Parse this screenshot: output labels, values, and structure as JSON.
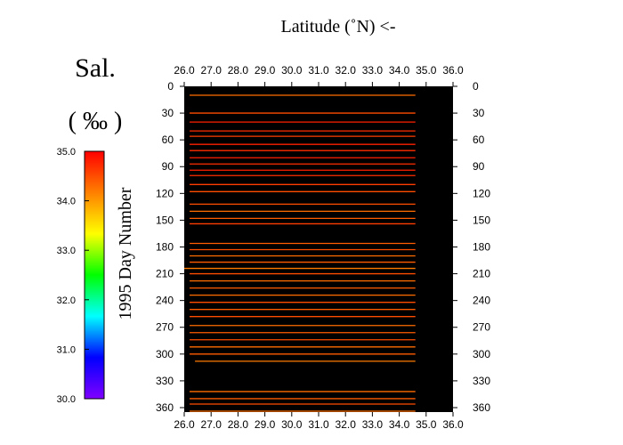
{
  "chart_data": {
    "type": "heatmap",
    "title": "Latitude (˚N) <-",
    "xlabel": "Latitude (˚N) <-",
    "ylabel": "1995  Day Number",
    "x_ticks": [
      "26.0",
      "27.0",
      "28.0",
      "29.0",
      "30.0",
      "31.0",
      "32.0",
      "33.0",
      "34.0",
      "35.0",
      "36.0"
    ],
    "xlim": [
      26.0,
      36.0
    ],
    "y_ticks": [
      "0",
      "30",
      "60",
      "90",
      "120",
      "150",
      "180",
      "210",
      "240",
      "270",
      "300",
      "330",
      "360"
    ],
    "ylim": [
      0,
      365
    ],
    "y_inverted": true,
    "colorbar": {
      "label_line1": "Sal.",
      "label_line2": "( ‰ )",
      "ticks": [
        "35.0",
        "34.0",
        "33.0",
        "32.0",
        "31.0",
        "30.0"
      ],
      "range": [
        30.0,
        35.0
      ],
      "colormap": [
        "#ff0000",
        "#ff8000",
        "#ffff00",
        "#00ff00",
        "#00ffff",
        "#0000ff",
        "#8000ff"
      ]
    },
    "background_color": "#000000",
    "tracks": [
      {
        "day": 10,
        "start": 26.2,
        "end": 34.6,
        "value": 34.3
      },
      {
        "day": 30,
        "start": 26.2,
        "end": 34.6,
        "value": 34.5
      },
      {
        "day": 40,
        "start": 26.2,
        "end": 34.6,
        "value": 34.8
      },
      {
        "day": 50,
        "start": 26.2,
        "end": 34.6,
        "value": 34.7
      },
      {
        "day": 56,
        "start": 26.2,
        "end": 34.6,
        "value": 34.6
      },
      {
        "day": 65,
        "start": 26.2,
        "end": 34.6,
        "value": 34.8
      },
      {
        "day": 72,
        "start": 26.2,
        "end": 34.6,
        "value": 34.7
      },
      {
        "day": 80,
        "start": 26.2,
        "end": 34.6,
        "value": 34.8
      },
      {
        "day": 87,
        "start": 26.2,
        "end": 34.6,
        "value": 34.7
      },
      {
        "day": 94,
        "start": 26.2,
        "end": 34.6,
        "value": 34.8
      },
      {
        "day": 100,
        "start": 26.2,
        "end": 34.6,
        "value": 34.7
      },
      {
        "day": 110,
        "start": 26.2,
        "end": 34.6,
        "value": 34.6
      },
      {
        "day": 118,
        "start": 26.2,
        "end": 34.6,
        "value": 34.5
      },
      {
        "day": 132,
        "start": 26.2,
        "end": 34.6,
        "value": 34.5
      },
      {
        "day": 140,
        "start": 26.2,
        "end": 34.6,
        "value": 34.3
      },
      {
        "day": 148,
        "start": 26.2,
        "end": 34.6,
        "value": 34.4
      },
      {
        "day": 154,
        "start": 26.2,
        "end": 34.6,
        "value": 34.6
      },
      {
        "day": 176,
        "start": 26.2,
        "end": 34.6,
        "value": 34.4
      },
      {
        "day": 183,
        "start": 26.2,
        "end": 34.6,
        "value": 34.5
      },
      {
        "day": 190,
        "start": 26.2,
        "end": 34.6,
        "value": 34.3
      },
      {
        "day": 197,
        "start": 26.2,
        "end": 34.6,
        "value": 34.4
      },
      {
        "day": 204,
        "start": 26.0,
        "end": 34.6,
        "value": 34.2
      },
      {
        "day": 210,
        "start": 26.2,
        "end": 34.6,
        "value": 34.5
      },
      {
        "day": 218,
        "start": 26.2,
        "end": 34.6,
        "value": 34.3
      },
      {
        "day": 226,
        "start": 26.2,
        "end": 34.6,
        "value": 34.4
      },
      {
        "day": 234,
        "start": 26.2,
        "end": 34.6,
        "value": 34.3
      },
      {
        "day": 242,
        "start": 26.2,
        "end": 34.6,
        "value": 34.5
      },
      {
        "day": 250,
        "start": 26.2,
        "end": 34.6,
        "value": 34.4
      },
      {
        "day": 258,
        "start": 26.2,
        "end": 34.6,
        "value": 34.5
      },
      {
        "day": 268,
        "start": 26.2,
        "end": 34.6,
        "value": 34.3
      },
      {
        "day": 276,
        "start": 26.2,
        "end": 34.6,
        "value": 34.4
      },
      {
        "day": 284,
        "start": 26.2,
        "end": 34.6,
        "value": 34.5
      },
      {
        "day": 292,
        "start": 26.2,
        "end": 34.6,
        "value": 34.3
      },
      {
        "day": 300,
        "start": 26.2,
        "end": 34.6,
        "value": 34.4
      },
      {
        "day": 308,
        "start": 26.4,
        "end": 34.6,
        "value": 34.2
      },
      {
        "day": 342,
        "start": 26.2,
        "end": 34.6,
        "value": 34.3
      },
      {
        "day": 350,
        "start": 26.2,
        "end": 34.6,
        "value": 34.4
      },
      {
        "day": 356,
        "start": 26.2,
        "end": 34.6,
        "value": 34.5
      },
      {
        "day": 364,
        "start": 26.2,
        "end": 34.6,
        "value": 34.3
      }
    ]
  }
}
